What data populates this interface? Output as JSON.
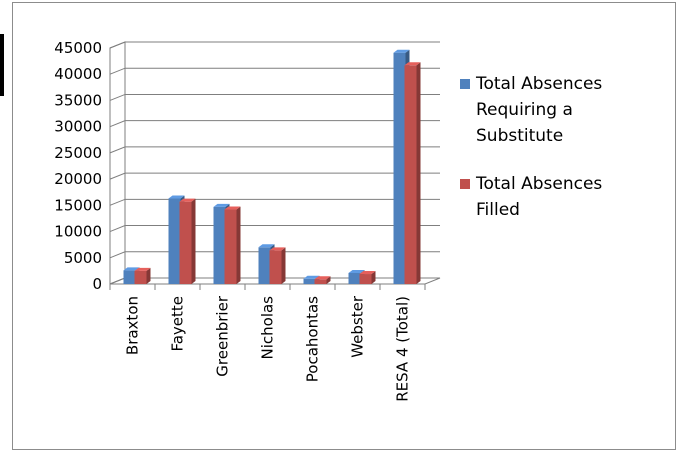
{
  "chart_data": {
    "type": "bar",
    "categories": [
      "Braxton",
      "Fayette",
      "Greenbrier",
      "Nicholas",
      "Pocahontas",
      "Webster",
      "RESA 4 (Total)"
    ],
    "series": [
      {
        "name": "Total Absences Requiring a Substitute",
        "color": "#4f81bd",
        "values": [
          2600,
          16300,
          14700,
          7000,
          1000,
          2100,
          44100
        ]
      },
      {
        "name": "Total Absences Filled",
        "color": "#c0504d",
        "values": [
          2500,
          15700,
          14200,
          6400,
          900,
          1900,
          41700
        ]
      }
    ],
    "yticks": [
      "0",
      "5000",
      "10000",
      "15000",
      "20000",
      "25000",
      "30000",
      "35000",
      "40000",
      "45000"
    ],
    "ylim": [
      0,
      45000
    ],
    "grid": true,
    "legend_position": "right",
    "legend": {
      "lines": [
        [
          "Total Absences",
          "Requiring a",
          "Substitute"
        ],
        [
          "Total Absences",
          "Filled"
        ]
      ]
    }
  }
}
